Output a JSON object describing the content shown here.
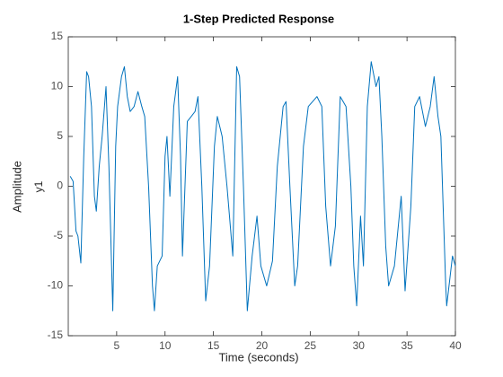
{
  "chart_data": {
    "type": "line",
    "title": "1-Step Predicted Response",
    "xlabel": "Time (seconds)",
    "ylabel": "Amplitude",
    "y_axis_name": "y1",
    "xlim": [
      0,
      40
    ],
    "xticks": [
      5,
      10,
      15,
      20,
      25,
      30,
      35,
      40
    ],
    "ylim": [
      -15,
      15
    ],
    "yticks": [
      -15,
      -10,
      -5,
      0,
      5,
      10,
      15
    ],
    "grid": false,
    "series": [
      {
        "name": "y1",
        "color": "#0072BD",
        "x": [
          0.2,
          0.5,
          0.8,
          1.0,
          1.3,
          1.6,
          1.9,
          2.1,
          2.4,
          2.7,
          2.9,
          3.2,
          3.5,
          3.9,
          4.2,
          4.6,
          4.9,
          5.1,
          5.5,
          5.8,
          6.1,
          6.4,
          6.8,
          7.2,
          7.6,
          7.9,
          8.3,
          8.7,
          8.9,
          9.2,
          9.7,
          10.0,
          10.2,
          10.5,
          10.9,
          11.3,
          11.6,
          11.8,
          12.3,
          12.7,
          13.1,
          13.4,
          13.8,
          14.2,
          14.6,
          15.1,
          15.4,
          15.9,
          16.4,
          17.0,
          17.4,
          17.7,
          18.1,
          18.5,
          19.0,
          19.5,
          19.9,
          20.5,
          21.1,
          21.6,
          22.2,
          22.5,
          22.9,
          23.4,
          23.7,
          24.3,
          24.8,
          25.7,
          26.2,
          26.6,
          27.1,
          27.6,
          28.1,
          28.7,
          29.2,
          29.5,
          29.8,
          30.2,
          30.5,
          30.9,
          31.3,
          31.8,
          32.1,
          32.4,
          32.8,
          33.1,
          33.7,
          34.4,
          34.8,
          35.4,
          35.8,
          36.3,
          36.9,
          37.4,
          37.8,
          38.2,
          38.5,
          39.0,
          39.1,
          39.7,
          40.0
        ],
        "values": [
          1.0,
          0.5,
          -4.5,
          -5,
          -7.7,
          3,
          11.5,
          11,
          8,
          -1,
          -2.5,
          2,
          5,
          10,
          2,
          -12.5,
          4,
          8,
          11,
          12,
          9,
          7.5,
          8,
          9.5,
          8,
          7,
          0,
          -10,
          -12.5,
          -8,
          -7,
          3,
          5,
          -1,
          8,
          11,
          3,
          -7,
          6.5,
          7,
          7.5,
          9,
          0,
          -11.5,
          -8,
          4,
          7,
          5,
          0,
          -7,
          12,
          11,
          0,
          -12.5,
          -7,
          -3,
          -8,
          -10,
          -7.5,
          2,
          8,
          8.5,
          0,
          -10,
          -8,
          4,
          8,
          9,
          8,
          -2,
          -8,
          -4,
          9,
          8,
          0,
          -8,
          -12,
          -3,
          -8,
          8,
          12.5,
          10,
          11,
          5,
          -6,
          -10,
          -8,
          -1,
          -10.5,
          -2,
          8,
          9,
          6,
          8,
          11,
          7,
          5,
          -10,
          -12,
          -7,
          -8
        ]
      }
    ]
  }
}
